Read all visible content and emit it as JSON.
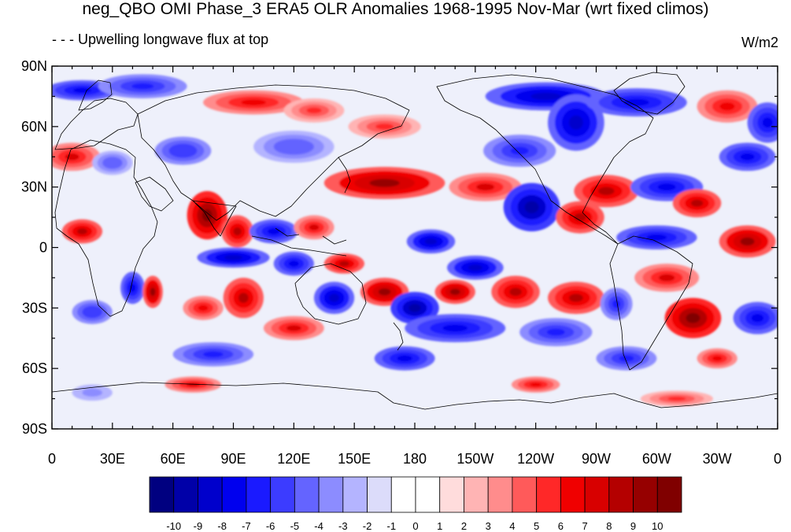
{
  "title": "neg_QBO OMI Phase_3 ERA5 OLR Anomalies 1968-1995 Nov-Mar (wrt fixed climos)",
  "left_string": "- - - Upwelling longwave flux at top",
  "right_string": "W/m2",
  "map": {
    "projection": "cylindrical equidistant",
    "lon_range": [
      0,
      360
    ],
    "lat_range": [
      -90,
      90
    ],
    "lat_ticks": [
      {
        "lat": 90,
        "label": "90N"
      },
      {
        "lat": 60,
        "label": "60N"
      },
      {
        "lat": 30,
        "label": "30N"
      },
      {
        "lat": 0,
        "label": "0"
      },
      {
        "lat": -30,
        "label": "30S"
      },
      {
        "lat": -60,
        "label": "60S"
      },
      {
        "lat": -90,
        "label": "90S"
      }
    ],
    "lon_ticks": [
      {
        "lon": 0,
        "label": "0"
      },
      {
        "lon": 30,
        "label": "30E"
      },
      {
        "lon": 60,
        "label": "60E"
      },
      {
        "lon": 90,
        "label": "90E"
      },
      {
        "lon": 120,
        "label": "120E"
      },
      {
        "lon": 150,
        "label": "150E"
      },
      {
        "lon": 180,
        "label": "180"
      },
      {
        "lon": 210,
        "label": "150W"
      },
      {
        "lon": 240,
        "label": "120W"
      },
      {
        "lon": 270,
        "label": "90W"
      },
      {
        "lon": 300,
        "label": "60W"
      },
      {
        "lon": 330,
        "label": "30W"
      },
      {
        "lon": 360,
        "label": "0"
      }
    ],
    "anomaly_blobs": [
      {
        "lon": 15,
        "lat": 78,
        "rx": 18,
        "ry": 5,
        "v": -8
      },
      {
        "lon": 45,
        "lat": 80,
        "rx": 22,
        "ry": 6,
        "v": -7
      },
      {
        "lon": 100,
        "lat": 72,
        "rx": 25,
        "ry": 6,
        "v": 6
      },
      {
        "lon": 130,
        "lat": 68,
        "rx": 15,
        "ry": 6,
        "v": 5
      },
      {
        "lon": 165,
        "lat": 60,
        "rx": 18,
        "ry": 6,
        "v": 5
      },
      {
        "lon": 245,
        "lat": 75,
        "rx": 30,
        "ry": 7,
        "v": -9
      },
      {
        "lon": 260,
        "lat": 62,
        "rx": 14,
        "ry": 14,
        "v": -9
      },
      {
        "lon": 290,
        "lat": 72,
        "rx": 25,
        "ry": 7,
        "v": -8
      },
      {
        "lon": 335,
        "lat": 70,
        "rx": 15,
        "ry": 8,
        "v": 6
      },
      {
        "lon": 355,
        "lat": 62,
        "rx": 10,
        "ry": 10,
        "v": -8
      },
      {
        "lon": 10,
        "lat": 45,
        "rx": 14,
        "ry": 7,
        "v": 7
      },
      {
        "lon": 30,
        "lat": 42,
        "rx": 10,
        "ry": 6,
        "v": -5
      },
      {
        "lon": 65,
        "lat": 48,
        "rx": 14,
        "ry": 7,
        "v": -6
      },
      {
        "lon": 120,
        "lat": 50,
        "rx": 20,
        "ry": 8,
        "v": -5
      },
      {
        "lon": 165,
        "lat": 32,
        "rx": 30,
        "ry": 8,
        "v": 9
      },
      {
        "lon": 215,
        "lat": 30,
        "rx": 18,
        "ry": 7,
        "v": 7
      },
      {
        "lon": 238,
        "lat": 20,
        "rx": 14,
        "ry": 12,
        "v": -10
      },
      {
        "lon": 232,
        "lat": 48,
        "rx": 18,
        "ry": 8,
        "v": -7
      },
      {
        "lon": 275,
        "lat": 28,
        "rx": 16,
        "ry": 8,
        "v": 8
      },
      {
        "lon": 305,
        "lat": 30,
        "rx": 18,
        "ry": 7,
        "v": -8
      },
      {
        "lon": 320,
        "lat": 22,
        "rx": 12,
        "ry": 7,
        "v": 8
      },
      {
        "lon": 345,
        "lat": 45,
        "rx": 14,
        "ry": 7,
        "v": -8
      },
      {
        "lon": 77,
        "lat": 16,
        "rx": 10,
        "ry": 12,
        "v": 10
      },
      {
        "lon": 92,
        "lat": 8,
        "rx": 8,
        "ry": 8,
        "v": 8
      },
      {
        "lon": 15,
        "lat": 8,
        "rx": 10,
        "ry": 6,
        "v": 8
      },
      {
        "lon": 110,
        "lat": 8,
        "rx": 12,
        "ry": 6,
        "v": -8
      },
      {
        "lon": 130,
        "lat": 10,
        "rx": 10,
        "ry": 6,
        "v": 7
      },
      {
        "lon": 188,
        "lat": 3,
        "rx": 12,
        "ry": 6,
        "v": -9
      },
      {
        "lon": 262,
        "lat": 15,
        "rx": 12,
        "ry": 8,
        "v": 8
      },
      {
        "lon": 300,
        "lat": 5,
        "rx": 20,
        "ry": 6,
        "v": -8
      },
      {
        "lon": 345,
        "lat": 3,
        "rx": 14,
        "ry": 8,
        "v": 9
      },
      {
        "lon": 90,
        "lat": -5,
        "rx": 18,
        "ry": 5,
        "v": -9
      },
      {
        "lon": 120,
        "lat": -8,
        "rx": 10,
        "ry": 6,
        "v": -8
      },
      {
        "lon": 145,
        "lat": -8,
        "rx": 10,
        "ry": 5,
        "v": 8
      },
      {
        "lon": 210,
        "lat": -10,
        "rx": 14,
        "ry": 6,
        "v": -9
      },
      {
        "lon": 305,
        "lat": -15,
        "rx": 16,
        "ry": 7,
        "v": 7
      },
      {
        "lon": 40,
        "lat": -20,
        "rx": 6,
        "ry": 8,
        "v": -8
      },
      {
        "lon": 50,
        "lat": -22,
        "rx": 5,
        "ry": 8,
        "v": 9
      },
      {
        "lon": 95,
        "lat": -25,
        "rx": 10,
        "ry": 10,
        "v": 8
      },
      {
        "lon": 140,
        "lat": -25,
        "rx": 10,
        "ry": 8,
        "v": -9
      },
      {
        "lon": 165,
        "lat": -22,
        "rx": 12,
        "ry": 7,
        "v": 9
      },
      {
        "lon": 180,
        "lat": -30,
        "rx": 12,
        "ry": 8,
        "v": -10
      },
      {
        "lon": 200,
        "lat": -22,
        "rx": 10,
        "ry": 6,
        "v": 9
      },
      {
        "lon": 230,
        "lat": -22,
        "rx": 12,
        "ry": 8,
        "v": 8
      },
      {
        "lon": 260,
        "lat": -25,
        "rx": 14,
        "ry": 8,
        "v": 8
      },
      {
        "lon": 280,
        "lat": -28,
        "rx": 8,
        "ry": 8,
        "v": -7
      },
      {
        "lon": 318,
        "lat": -35,
        "rx": 14,
        "ry": 10,
        "v": 10
      },
      {
        "lon": 350,
        "lat": -35,
        "rx": 12,
        "ry": 8,
        "v": -8
      },
      {
        "lon": 20,
        "lat": -32,
        "rx": 10,
        "ry": 6,
        "v": -6
      },
      {
        "lon": 75,
        "lat": -30,
        "rx": 10,
        "ry": 6,
        "v": 6
      },
      {
        "lon": 200,
        "lat": -40,
        "rx": 25,
        "ry": 7,
        "v": -8
      },
      {
        "lon": 250,
        "lat": -42,
        "rx": 18,
        "ry": 7,
        "v": -7
      },
      {
        "lon": 120,
        "lat": -40,
        "rx": 15,
        "ry": 6,
        "v": 7
      },
      {
        "lon": 80,
        "lat": -53,
        "rx": 20,
        "ry": 6,
        "v": -7
      },
      {
        "lon": 175,
        "lat": -55,
        "rx": 15,
        "ry": 6,
        "v": -8
      },
      {
        "lon": 285,
        "lat": -55,
        "rx": 15,
        "ry": 6,
        "v": -7
      },
      {
        "lon": 330,
        "lat": -55,
        "rx": 10,
        "ry": 5,
        "v": 6
      },
      {
        "lon": 70,
        "lat": -68,
        "rx": 14,
        "ry": 4,
        "v": 7
      },
      {
        "lon": 240,
        "lat": -68,
        "rx": 12,
        "ry": 4,
        "v": 6
      },
      {
        "lon": 310,
        "lat": -75,
        "rx": 18,
        "ry": 4,
        "v": 5
      },
      {
        "lon": 20,
        "lat": -72,
        "rx": 10,
        "ry": 4,
        "v": -4
      }
    ]
  },
  "colorbar": {
    "colors": [
      "#000080",
      "#0000a8",
      "#0000cc",
      "#0000ee",
      "#1a1aff",
      "#3c3cff",
      "#6464ff",
      "#8c8cff",
      "#b4b4ff",
      "#dcdcfa",
      "#ffffff",
      "#ffffff",
      "#ffdcdc",
      "#ffb4b4",
      "#ff8c8c",
      "#ff5a5a",
      "#ff2828",
      "#f00000",
      "#d80000",
      "#b40000",
      "#960000",
      "#800000"
    ],
    "labels": [
      "-10",
      "-9",
      "-8",
      "-7",
      "-6",
      "-5",
      "-4",
      "-3",
      "-2",
      "-1",
      "0",
      "1",
      "2",
      "3",
      "4",
      "5",
      "6",
      "7",
      "8",
      "9",
      "10"
    ]
  }
}
